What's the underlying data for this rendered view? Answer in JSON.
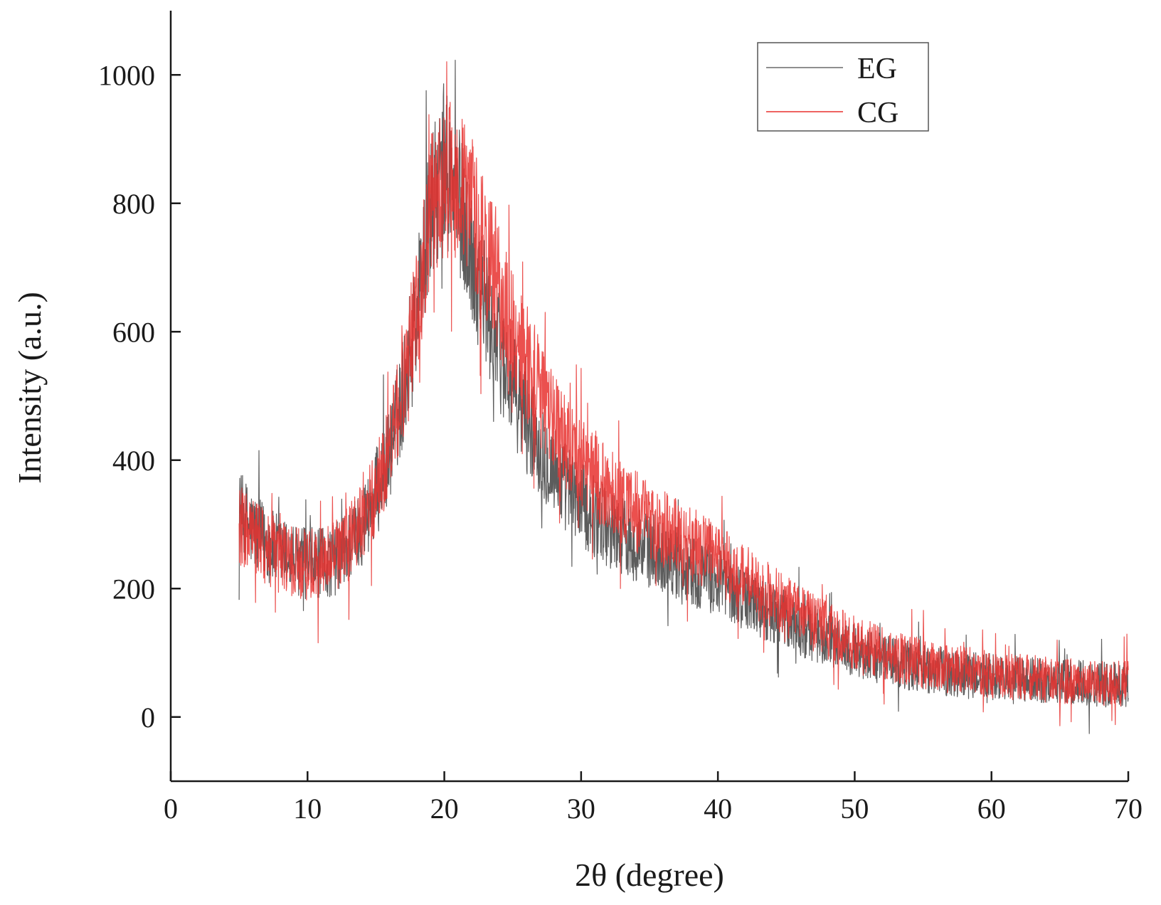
{
  "chart_data": {
    "type": "line",
    "title": "",
    "xlabel": "2θ (degree)",
    "ylabel": "Intensity (a.u.)",
    "xlim": [
      0,
      70
    ],
    "ylim": [
      -100,
      1100
    ],
    "x_ticks": [
      0,
      10,
      20,
      30,
      40,
      50,
      60,
      70
    ],
    "y_ticks": [
      0,
      200,
      400,
      600,
      800,
      1000
    ],
    "grid": false,
    "legend_position": "top-right",
    "series": [
      {
        "name": "EG",
        "color": "#4a4a4a",
        "x": [
          5,
          6,
          7,
          8,
          9,
          10,
          11,
          12,
          13,
          14,
          15,
          16,
          17,
          18,
          19,
          20,
          21,
          22,
          23,
          24,
          25,
          26,
          27,
          28,
          29,
          30,
          32,
          34,
          36,
          38,
          40,
          42,
          44,
          46,
          48,
          50,
          52,
          54,
          56,
          58,
          60,
          62,
          64,
          66,
          68,
          70
        ],
        "values": [
          320,
          290,
          270,
          255,
          245,
          240,
          238,
          245,
          265,
          300,
          345,
          410,
          510,
          640,
          790,
          850,
          810,
          720,
          640,
          570,
          510,
          460,
          420,
          385,
          355,
          330,
          295,
          270,
          250,
          230,
          210,
          185,
          160,
          140,
          120,
          105,
          90,
          80,
          72,
          66,
          62,
          58,
          55,
          53,
          51,
          50
        ]
      },
      {
        "name": "CG",
        "color": "#e8312f",
        "x": [
          5,
          6,
          7,
          8,
          9,
          10,
          11,
          12,
          13,
          14,
          15,
          16,
          17,
          18,
          19,
          20,
          21,
          22,
          23,
          24,
          25,
          26,
          27,
          28,
          29,
          30,
          32,
          34,
          36,
          38,
          40,
          42,
          44,
          46,
          48,
          50,
          52,
          54,
          56,
          58,
          60,
          62,
          64,
          66,
          68,
          70
        ],
        "values": [
          300,
          280,
          262,
          250,
          242,
          238,
          238,
          248,
          270,
          305,
          350,
          420,
          515,
          640,
          790,
          840,
          830,
          790,
          730,
          660,
          600,
          550,
          505,
          465,
          430,
          400,
          355,
          320,
          295,
          270,
          245,
          215,
          185,
          160,
          135,
          115,
          100,
          88,
          78,
          72,
          67,
          62,
          58,
          56,
          53,
          52
        ]
      }
    ]
  }
}
